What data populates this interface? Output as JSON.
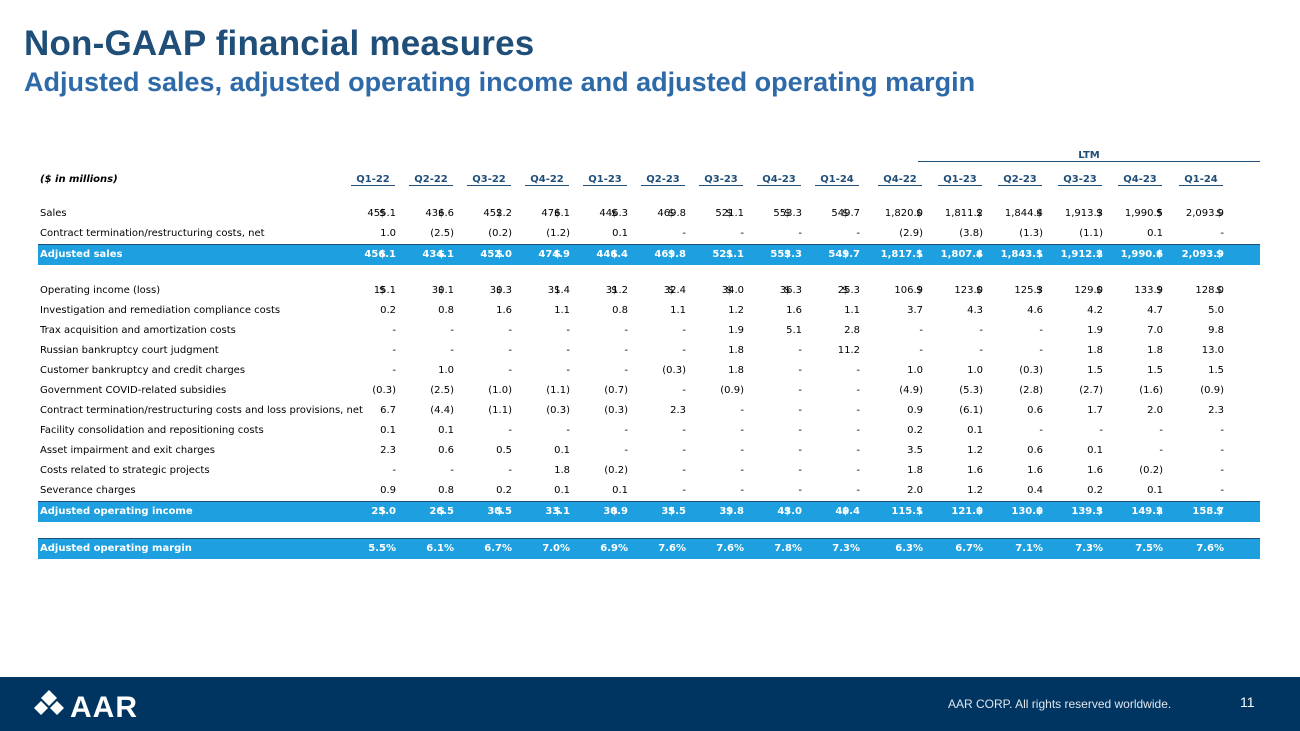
{
  "header": {
    "title": "Non-GAAP financial measures",
    "subtitle": "Adjusted sales, adjusted operating income and adjusted operating margin"
  },
  "table": {
    "units_label": "($ in millions)",
    "ltm_label": "LTM",
    "columns": [
      "Q1-22",
      "Q2-22",
      "Q3-22",
      "Q4-22",
      "Q1-23",
      "Q2-23",
      "Q3-23",
      "Q4-23",
      "Q1-24",
      "Q4-22",
      "Q1-23",
      "Q2-23",
      "Q3-23",
      "Q4-23",
      "Q1-24"
    ],
    "rows": [
      {
        "label": "Sales",
        "dollar": true,
        "values": [
          "455.1",
          "436.6",
          "452.2",
          "476.1",
          "446.3",
          "469.8",
          "521.1",
          "553.3",
          "549.7",
          "1,820.0",
          "1,811.2",
          "1,844.4",
          "1,913.3",
          "1,990.5",
          "2,093.9"
        ]
      },
      {
        "label": "Contract termination/restructuring costs, net",
        "values": [
          "1.0",
          "(2.5)",
          "(0.2)",
          "(1.2)",
          "0.1",
          "-",
          "-",
          "-",
          "-",
          "(2.9)",
          "(3.8)",
          "(1.3)",
          "(1.1)",
          "0.1",
          "-"
        ]
      },
      {
        "label": "Adjusted sales",
        "dollar": true,
        "highlight": true,
        "values": [
          "456.1",
          "434.1",
          "452.0",
          "474.9",
          "446.4",
          "469.8",
          "521.1",
          "553.3",
          "549.7",
          "1,817.1",
          "1,807.4",
          "1,843.1",
          "1,912.2",
          "1,990.6",
          "2,093.9"
        ]
      },
      {
        "spacer": true
      },
      {
        "label": "Operating income (loss)",
        "dollar": true,
        "values": [
          "15.1",
          "30.1",
          "30.3",
          "31.4",
          "31.2",
          "32.4",
          "34.0",
          "36.3",
          "25.3",
          "106.9",
          "123.0",
          "125.3",
          "129.0",
          "133.9",
          "128.0"
        ]
      },
      {
        "label": "Investigation and remediation compliance costs",
        "values": [
          "0.2",
          "0.8",
          "1.6",
          "1.1",
          "0.8",
          "1.1",
          "1.2",
          "1.6",
          "1.1",
          "3.7",
          "4.3",
          "4.6",
          "4.2",
          "4.7",
          "5.0"
        ]
      },
      {
        "label": "Trax acquisition and amortization costs",
        "values": [
          "-",
          "-",
          "-",
          "-",
          "-",
          "-",
          "1.9",
          "5.1",
          "2.8",
          "-",
          "-",
          "-",
          "1.9",
          "7.0",
          "9.8"
        ]
      },
      {
        "label": "Russian bankruptcy court judgment",
        "values": [
          "-",
          "-",
          "-",
          "-",
          "-",
          "-",
          "1.8",
          "-",
          "11.2",
          "-",
          "-",
          "-",
          "1.8",
          "1.8",
          "13.0"
        ]
      },
      {
        "label": "Customer bankruptcy and credit charges",
        "values": [
          "-",
          "1.0",
          "-",
          "-",
          "-",
          "(0.3)",
          "1.8",
          "-",
          "-",
          "1.0",
          "1.0",
          "(0.3)",
          "1.5",
          "1.5",
          "1.5"
        ]
      },
      {
        "label": "Government COVID-related subsidies",
        "values": [
          "(0.3)",
          "(2.5)",
          "(1.0)",
          "(1.1)",
          "(0.7)",
          "-",
          "(0.9)",
          "-",
          "-",
          "(4.9)",
          "(5.3)",
          "(2.8)",
          "(2.7)",
          "(1.6)",
          "(0.9)"
        ]
      },
      {
        "label": "Contract termination/restructuring costs and loss provisions, net",
        "values": [
          "6.7",
          "(4.4)",
          "(1.1)",
          "(0.3)",
          "(0.3)",
          "2.3",
          "-",
          "-",
          "-",
          "0.9",
          "(6.1)",
          "0.6",
          "1.7",
          "2.0",
          "2.3"
        ]
      },
      {
        "label": "Facility consolidation and repositioning costs",
        "values": [
          "0.1",
          "0.1",
          "-",
          "-",
          "-",
          "-",
          "-",
          "-",
          "-",
          "0.2",
          "0.1",
          "-",
          "-",
          "-",
          "-"
        ]
      },
      {
        "label": "Asset impairment and exit charges",
        "values": [
          "2.3",
          "0.6",
          "0.5",
          "0.1",
          "-",
          "-",
          "-",
          "-",
          "-",
          "3.5",
          "1.2",
          "0.6",
          "0.1",
          "-",
          "-"
        ]
      },
      {
        "label": "Costs related to strategic projects",
        "values": [
          "-",
          "-",
          "-",
          "1.8",
          "(0.2)",
          "-",
          "-",
          "-",
          "-",
          "1.8",
          "1.6",
          "1.6",
          "1.6",
          "(0.2)",
          "-"
        ]
      },
      {
        "label": "Severance charges",
        "values": [
          "0.9",
          "0.8",
          "0.2",
          "0.1",
          "0.1",
          "-",
          "-",
          "-",
          "-",
          "2.0",
          "1.2",
          "0.4",
          "0.2",
          "0.1",
          "-"
        ]
      },
      {
        "label": "Adjusted operating income",
        "dollar": true,
        "highlight": true,
        "values": [
          "25.0",
          "26.5",
          "30.5",
          "33.1",
          "30.9",
          "35.5",
          "39.8",
          "43.0",
          "40.4",
          "115.1",
          "121.0",
          "130.0",
          "139.3",
          "149.2",
          "158.7"
        ]
      },
      {
        "spacer": true
      },
      {
        "label": "Adjusted operating margin",
        "highlight": true,
        "values": [
          "5.5%",
          "6.1%",
          "6.7%",
          "7.0%",
          "6.9%",
          "7.6%",
          "7.6%",
          "7.8%",
          "7.3%",
          "6.3%",
          "6.7%",
          "7.1%",
          "7.3%",
          "7.5%",
          "7.6%"
        ]
      }
    ]
  },
  "footer": {
    "logo_text": "AAR",
    "rights": "AAR CORP. All rights reserved worldwide.",
    "page_number": "11"
  }
}
